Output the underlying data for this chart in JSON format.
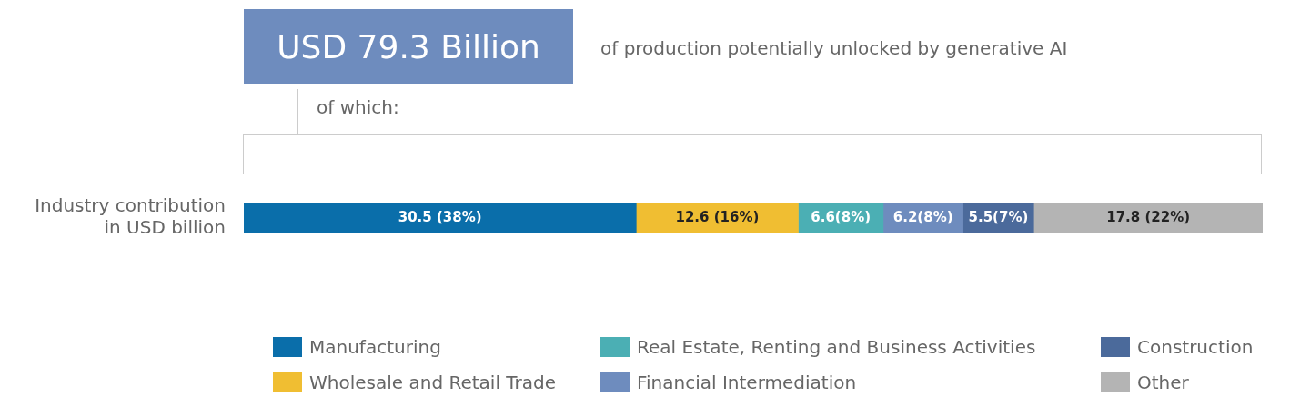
{
  "chart_data": {
    "type": "bar",
    "orientation": "horizontal",
    "stacked": true,
    "title": "USD 79.3 Billion",
    "subtitle": "of production potentially unlocked by generative AI",
    "annotations": [
      "of which:"
    ],
    "categories": [
      "Industry contribution in USD billion"
    ],
    "legend": "bottom",
    "series": [
      {
        "name": "Manufacturing",
        "color": "#0a6eaa",
        "values": [
          30.5
        ],
        "value_labels": [
          "30.5 (38%)"
        ]
      },
      {
        "name": "Wholesale and Retail Trade",
        "color": "#f0be32",
        "values": [
          12.6
        ],
        "value_labels": [
          "12.6 (16%)"
        ]
      },
      {
        "name": "Real Estate, Renting and Business Activities",
        "color": "#4bafb4",
        "values": [
          6.6
        ],
        "value_labels": [
          "6.6(8%)"
        ]
      },
      {
        "name": "Financial Intermediation",
        "color": "#6e8cbe",
        "values": [
          6.2
        ],
        "value_labels": [
          "6.2(8%)"
        ]
      },
      {
        "name": "Construction",
        "color": "#4b6a9b",
        "values": [
          5.5
        ],
        "value_labels": [
          "5.5(7%)"
        ]
      },
      {
        "name": "Other",
        "color": "#b4b4b4",
        "values": [
          17.8
        ],
        "value_labels": [
          "17.8 (22%)"
        ]
      }
    ]
  }
}
